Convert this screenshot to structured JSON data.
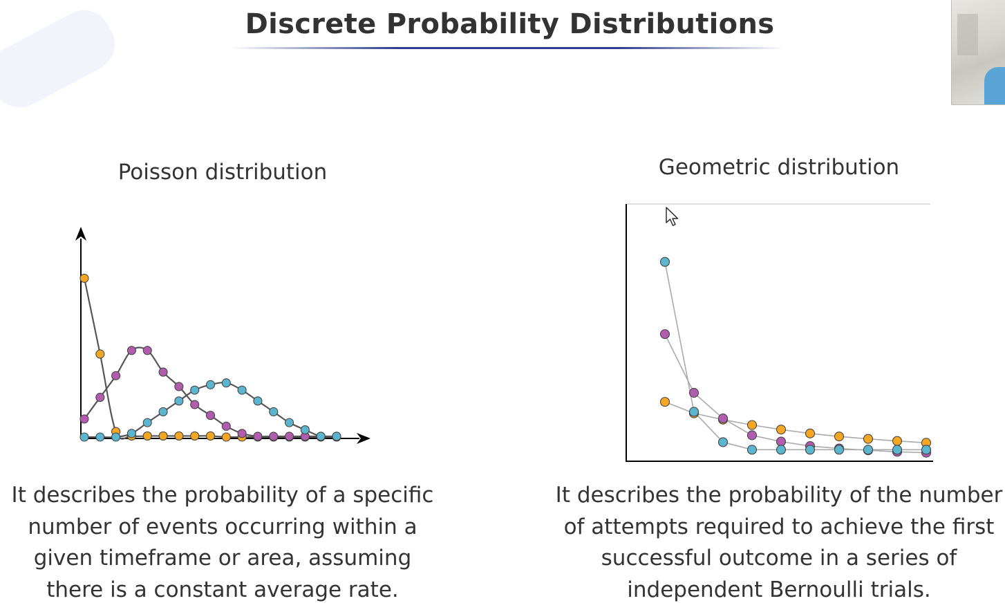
{
  "slide": {
    "title": "Discrete Probability Distributions"
  },
  "colors": {
    "orange": "#f5a623",
    "purple": "#b25cb0",
    "blue": "#5bb5cf",
    "title_rule": "#2c3e91",
    "curve": "#555555",
    "geo_line": "#aaaaaa"
  },
  "icons": {
    "cursor": "mouse-pointer-icon"
  },
  "chart_data": [
    {
      "type": "line",
      "title": "Poisson distribution",
      "xlabel": "",
      "ylabel": "",
      "axes": "arrows, no ticks",
      "x": [
        0,
        1,
        2,
        3,
        4,
        5,
        6,
        7,
        8,
        9,
        10,
        11,
        12,
        13,
        14,
        15,
        16
      ],
      "ylim": [
        0,
        0.55
      ],
      "series": [
        {
          "color": "orange",
          "values": [
            0.44,
            0.23,
            0.015,
            0.003,
            0.003,
            0.003,
            0.003,
            0.003,
            0.003,
            0,
            0,
            0,
            0,
            0,
            0,
            0,
            0
          ]
        },
        {
          "color": "purple",
          "values": [
            0.05,
            0.11,
            0.17,
            0.24,
            0.24,
            0.18,
            0.14,
            0.09,
            0.06,
            0.03,
            0.01,
            0.002,
            0.002,
            0.002,
            0.002,
            0.002,
            0.002
          ]
        },
        {
          "color": "blue",
          "values": [
            0,
            0,
            0,
            0.01,
            0.04,
            0.07,
            0.1,
            0.13,
            0.145,
            0.15,
            0.13,
            0.1,
            0.07,
            0.04,
            0.02,
            0.002,
            0.002
          ]
        }
      ],
      "description": "It describes the probability of a specific number of events occurring within a given timeframe or area, assuming there is a constant average rate."
    },
    {
      "type": "line",
      "title": "Geometric distribution",
      "xlabel": "",
      "ylabel": "",
      "axes": "box, no ticks",
      "x": [
        1,
        2,
        3,
        4,
        5,
        6,
        7,
        8,
        9,
        10
      ],
      "ylim": [
        0,
        0.85
      ],
      "series": [
        {
          "color": "orange",
          "values": [
            0.195,
            0.157,
            0.136,
            0.118,
            0.103,
            0.09,
            0.08,
            0.072,
            0.065,
            0.059
          ]
        },
        {
          "color": "purple",
          "values": [
            0.42,
            0.225,
            0.14,
            0.084,
            0.063,
            0.048,
            0.04,
            0.034,
            0.029,
            0.026
          ]
        },
        {
          "color": "blue",
          "values": [
            0.66,
            0.162,
            0.061,
            0.036,
            0.036,
            0.036,
            0.036,
            0.036,
            0.036,
            0.036
          ]
        }
      ],
      "description": "It describes the probability of the number of attempts required to achieve the first successful outcome in a series of independent Bernoulli trials."
    }
  ]
}
